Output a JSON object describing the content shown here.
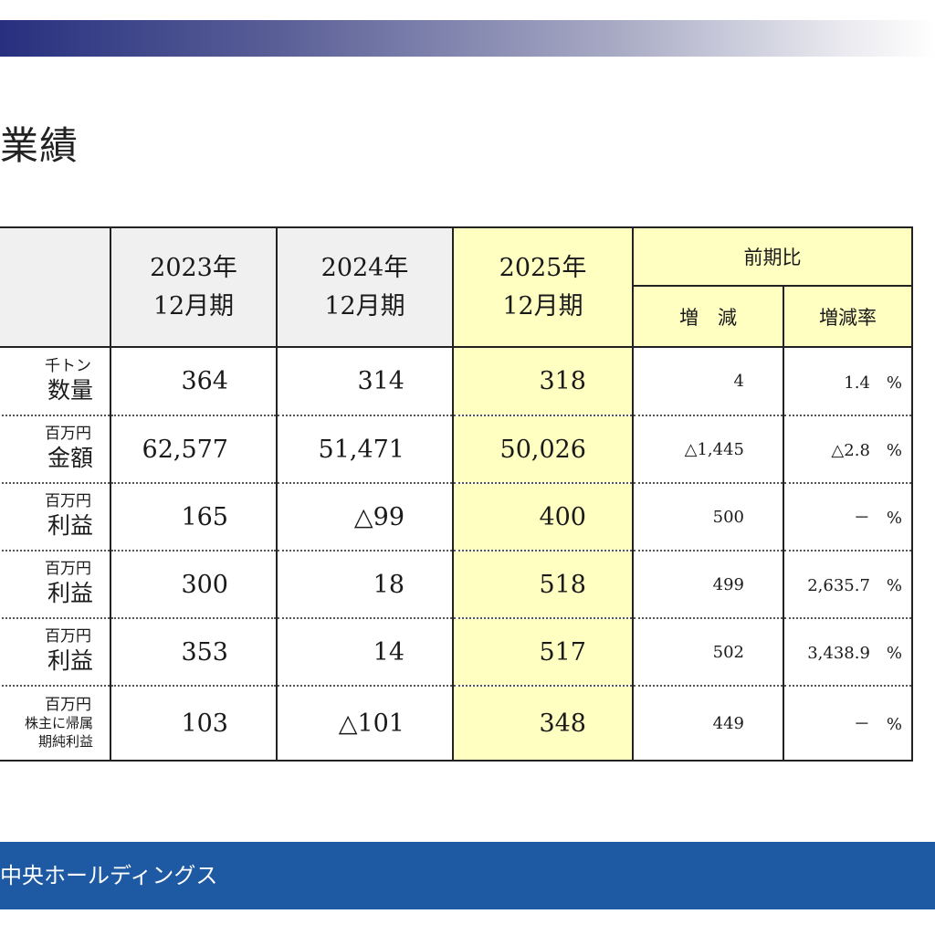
{
  "title": "業績",
  "header": {
    "years": [
      {
        "year": "2023年",
        "period": "12月期"
      },
      {
        "year": "2024年",
        "period": "12月期"
      },
      {
        "year": "2025年",
        "period": "12月期"
      }
    ],
    "comparison": "前期比",
    "change": "増　減",
    "change_rate": "増減率"
  },
  "rows": [
    {
      "unit": "千トン",
      "label": "数量",
      "v2023": "364",
      "v2024": "314",
      "v2025": "318",
      "change": "4",
      "rate": "1.4　%"
    },
    {
      "unit": "百万円",
      "label": "金額",
      "v2023": "62,577",
      "v2024": "51,471",
      "v2025": "50,026",
      "change": "△1,445",
      "rate": "△2.8　%"
    },
    {
      "unit": "百万円",
      "label": "利益",
      "v2023": "165",
      "v2024": "△99",
      "v2025": "400",
      "change": "500",
      "rate": "－　%"
    },
    {
      "unit": "百万円",
      "label": "利益",
      "v2023": "300",
      "v2024": "18",
      "v2025": "518",
      "change": "499",
      "rate": "2,635.7　%"
    },
    {
      "unit": "百万円",
      "label": "利益",
      "v2023": "353",
      "v2024": "14",
      "v2025": "517",
      "change": "502",
      "rate": "3,438.9　%"
    },
    {
      "unit": "百万円",
      "label_line1": "株主に帰属",
      "label_line2": "期純利益",
      "v2023": "103",
      "v2024": "△101",
      "v2025": "348",
      "change": "449",
      "rate": "－　%"
    }
  ],
  "footer": {
    "company": "中央ホールディングス"
  },
  "colors": {
    "highlight": "#ffffc2",
    "footer_bar": "#1e59a3",
    "top_bar_start": "#27307f"
  }
}
